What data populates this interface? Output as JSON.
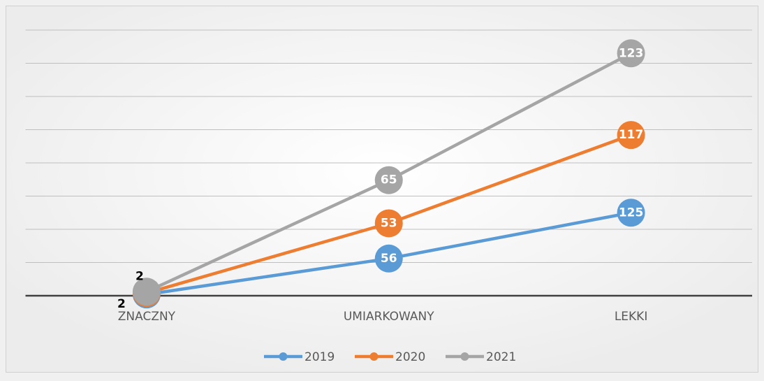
{
  "chart_data": {
    "type": "line",
    "stacked": true,
    "categories": [
      "ZNACZNY",
      "UMIARKOWANY",
      "LEKKI"
    ],
    "series": [
      {
        "name": "2019",
        "color": "#5b9bd5",
        "values": [
          2,
          56,
          125
        ]
      },
      {
        "name": "2020",
        "color": "#ed7d31",
        "values": [
          2,
          53,
          117
        ]
      },
      {
        "name": "2021",
        "color": "#a5a5a5",
        "values": [
          2,
          65,
          123
        ]
      }
    ],
    "ylim": [
      0,
      400
    ],
    "yticks": [
      0,
      50,
      100,
      150,
      200,
      250,
      300,
      350,
      400
    ],
    "grid": true,
    "legend": "bottom"
  }
}
